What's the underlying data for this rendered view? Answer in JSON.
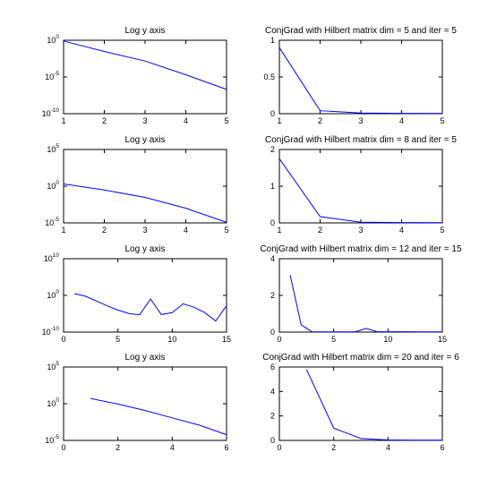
{
  "chart_data": [
    {
      "type": "line",
      "title": "Log y axis",
      "yscale": "log",
      "xlim": [
        1,
        5
      ],
      "ylim": [
        1e-10,
        1
      ],
      "xticks": [
        "1",
        "2",
        "3",
        "4",
        "5"
      ],
      "xtick_values": [
        1,
        2,
        3,
        4,
        5
      ],
      "yticks": [
        {
          "base": "10",
          "exp": "0",
          "value": 1
        },
        {
          "base": "10",
          "exp": "-5",
          "value": 1e-05
        },
        {
          "base": "10",
          "exp": "-10",
          "value": 1e-10
        }
      ],
      "x": [
        1,
        2,
        3,
        4,
        5
      ],
      "y": [
        0.8,
        0.03,
        0.0015,
        2e-05,
        2e-07
      ],
      "color": "#0000ff"
    },
    {
      "type": "line",
      "title": "ConjGrad with Hilbert matrix dim = 5 and iter = 5",
      "yscale": "linear",
      "xlim": [
        1,
        5
      ],
      "ylim": [
        0,
        1
      ],
      "xticks": [
        "1",
        "2",
        "3",
        "4",
        "5"
      ],
      "xtick_values": [
        1,
        2,
        3,
        4,
        5
      ],
      "yticks": [
        {
          "label": "1",
          "value": 1
        },
        {
          "label": "0.5",
          "value": 0.5
        },
        {
          "label": "0",
          "value": 0
        }
      ],
      "x": [
        1,
        2,
        3,
        4,
        5
      ],
      "y": [
        0.9,
        0.04,
        0.01,
        0.005,
        0.004
      ],
      "color": "#0000ff"
    },
    {
      "type": "line",
      "title": "Log y axis",
      "yscale": "log",
      "xlim": [
        1,
        5
      ],
      "ylim": [
        1e-05,
        100000.0
      ],
      "xticks": [
        "1",
        "2",
        "3",
        "4",
        "5"
      ],
      "xtick_values": [
        1,
        2,
        3,
        4,
        5
      ],
      "yticks": [
        {
          "base": "10",
          "exp": "5",
          "value": 100000.0
        },
        {
          "base": "10",
          "exp": "0",
          "value": 1
        },
        {
          "base": "10",
          "exp": "-5",
          "value": 1e-05
        }
      ],
      "x": [
        1,
        2,
        3,
        4,
        5
      ],
      "y": [
        2,
        0.3,
        0.03,
        0.001,
        1.2e-05
      ],
      "color": "#0000ff"
    },
    {
      "type": "line",
      "title": "ConjGrad with Hilbert matrix dim = 8 and iter = 5",
      "yscale": "linear",
      "xlim": [
        1,
        5
      ],
      "ylim": [
        0,
        2
      ],
      "xticks": [
        "1",
        "2",
        "3",
        "4",
        "5"
      ],
      "xtick_values": [
        1,
        2,
        3,
        4,
        5
      ],
      "yticks": [
        {
          "label": "2",
          "value": 2
        },
        {
          "label": "1",
          "value": 1
        },
        {
          "label": "0",
          "value": 0
        }
      ],
      "x": [
        1,
        2,
        3,
        4,
        5
      ],
      "y": [
        1.75,
        0.17,
        0.02,
        0.01,
        0.005
      ],
      "color": "#0000ff"
    },
    {
      "type": "line",
      "title": "Log y axis",
      "yscale": "log",
      "xlim": [
        0,
        15
      ],
      "ylim": [
        1e-10,
        10000000000.0
      ],
      "xticks": [
        "0",
        "5",
        "10",
        "15"
      ],
      "xtick_values": [
        0,
        5,
        10,
        15
      ],
      "yticks": [
        {
          "base": "10",
          "exp": "10",
          "value": 10000000000.0
        },
        {
          "base": "10",
          "exp": "0",
          "value": 1
        },
        {
          "base": "10",
          "exp": "-10",
          "value": 1e-10
        }
      ],
      "x": [
        1,
        2,
        3,
        4,
        5,
        6,
        7,
        8,
        9,
        10,
        11,
        12,
        13,
        14,
        15
      ],
      "y": [
        3,
        0.6,
        0.03,
        0.0015,
        0.0001,
        1.2e-05,
        5e-06,
        0.1,
        6e-06,
        2e-05,
        0.005,
        0.0006,
        2e-05,
        1e-07,
        0.0015
      ],
      "color": "#0000ff"
    },
    {
      "type": "line",
      "title": "ConjGrad with Hilbert matrix dim = 12 and iter = 15",
      "yscale": "linear",
      "xlim": [
        0,
        15
      ],
      "ylim": [
        0,
        4
      ],
      "xticks": [
        "0",
        "5",
        "10",
        "15"
      ],
      "xtick_values": [
        0,
        5,
        10,
        15
      ],
      "yticks": [
        {
          "label": "4",
          "value": 4
        },
        {
          "label": "2",
          "value": 2
        },
        {
          "label": "0",
          "value": 0
        }
      ],
      "x": [
        1,
        2,
        3,
        4,
        5,
        6,
        7,
        8,
        9,
        10,
        11,
        12,
        13,
        14,
        15
      ],
      "y": [
        3.1,
        0.4,
        0.02,
        0.01,
        0.01,
        0.01,
        0.02,
        0.2,
        0.02,
        0.02,
        0.02,
        0.02,
        0.01,
        0.01,
        0.01
      ],
      "color": "#0000ff"
    },
    {
      "type": "line",
      "title": "Log y axis",
      "yscale": "log",
      "xlim": [
        0,
        6
      ],
      "ylim": [
        1e-05,
        100000.0
      ],
      "xticks": [
        "0",
        "2",
        "4",
        "6"
      ],
      "xtick_values": [
        0,
        2,
        4,
        6
      ],
      "yticks": [
        {
          "base": "10",
          "exp": "5",
          "value": 100000.0
        },
        {
          "base": "10",
          "exp": "0",
          "value": 1
        },
        {
          "base": "10",
          "exp": "-5",
          "value": 1e-05
        }
      ],
      "x": [
        1,
        2,
        3,
        4,
        5,
        6
      ],
      "y": [
        5,
        0.9,
        0.12,
        0.012,
        0.0012,
        6e-05
      ],
      "color": "#0000ff"
    },
    {
      "type": "line",
      "title": "ConjGrad with Hilbert matrix dim = 20 and iter = 6",
      "yscale": "linear",
      "xlim": [
        0,
        6
      ],
      "ylim": [
        0,
        6
      ],
      "xticks": [
        "0",
        "2",
        "4",
        "6"
      ],
      "xtick_values": [
        0,
        2,
        4,
        6
      ],
      "yticks": [
        {
          "label": "6",
          "value": 6
        },
        {
          "label": "4",
          "value": 4
        },
        {
          "label": "2",
          "value": 2
        },
        {
          "label": "0",
          "value": 0
        }
      ],
      "x": [
        1,
        2,
        3,
        4,
        5,
        6
      ],
      "y": [
        5.8,
        1.0,
        0.15,
        0.04,
        0.02,
        0.02
      ],
      "color": "#0000ff"
    }
  ]
}
